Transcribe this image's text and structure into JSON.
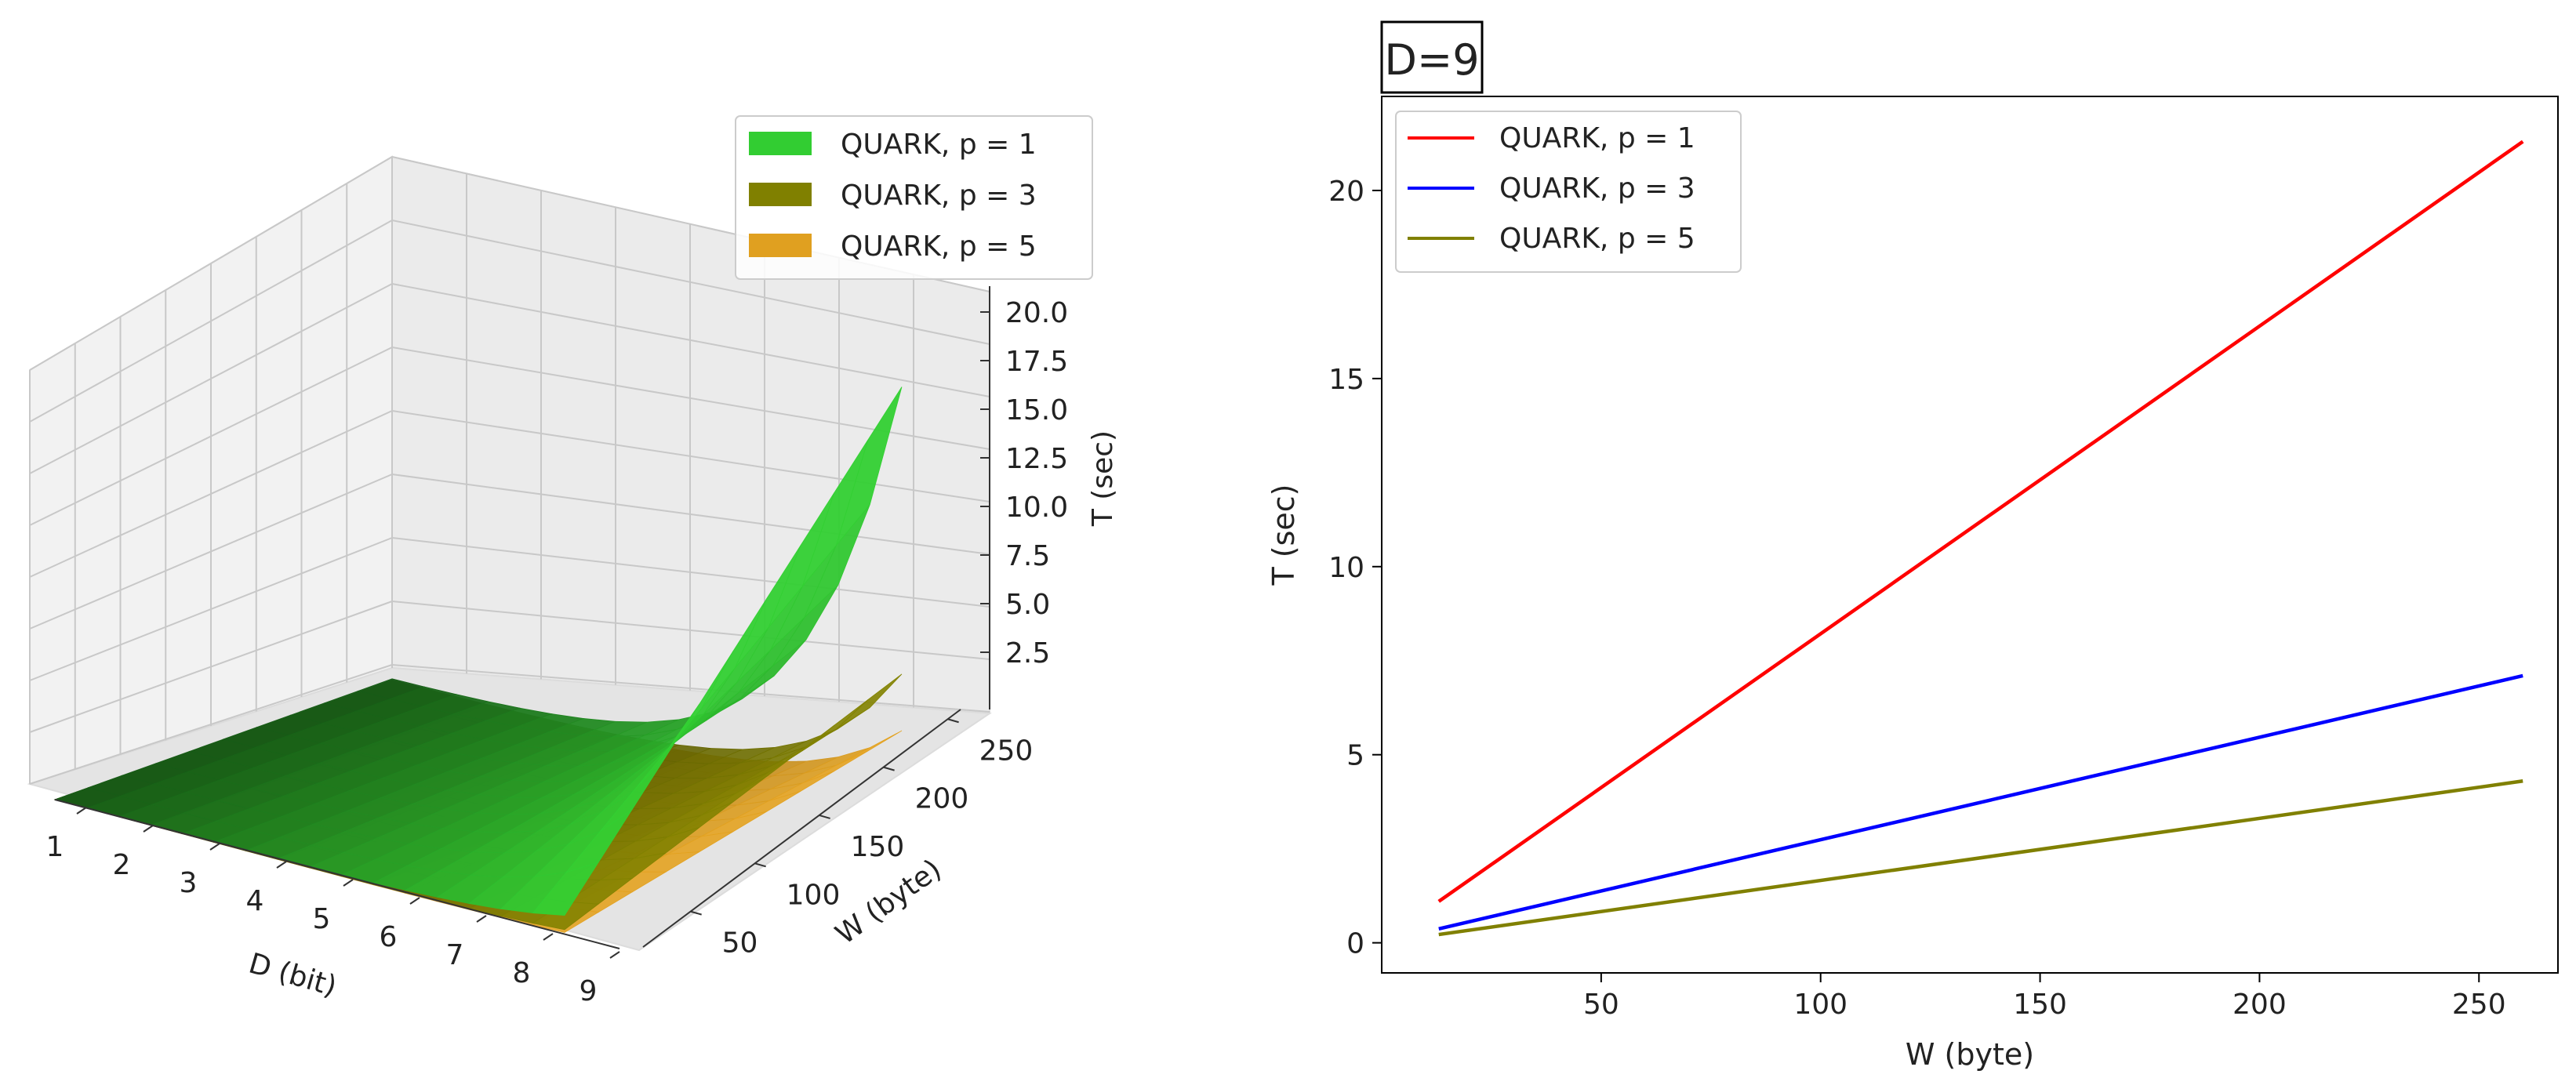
{
  "chart_data": [
    {
      "type": "surface3d",
      "xlabel": "D (bit)",
      "ylabel": "W (byte)",
      "zlabel": "T (sec)",
      "x_ticks": [
        1,
        2,
        3,
        4,
        5,
        6,
        7,
        8,
        9
      ],
      "y_ticks": [
        50,
        100,
        150,
        200,
        250
      ],
      "z_ticks": [
        "2.5",
        "5.0",
        "7.5",
        "10.0",
        "12.5",
        "15.0",
        "17.5",
        "20.0"
      ],
      "xlim": [
        1,
        9
      ],
      "ylim": [
        13,
        260
      ],
      "zlim": [
        0,
        21.5
      ],
      "legend_position": "top-right",
      "series": [
        {
          "name": "QUARK, p = 1",
          "color": "#32cd32",
          "t_at_D9_Wmax": 21.3
        },
        {
          "name": "QUARK, p = 3",
          "color": "#808000",
          "t_at_D9_Wmax": 7.1
        },
        {
          "name": "QUARK, p = 5",
          "color": "#e0a020",
          "t_at_D9_Wmax": 4.3
        }
      ]
    },
    {
      "type": "line",
      "title": "D=9",
      "xlabel": "W (byte)",
      "ylabel": "T (sec)",
      "x_ticks": [
        50,
        100,
        150,
        200,
        250
      ],
      "y_ticks": [
        0,
        5,
        10,
        15,
        20
      ],
      "xlim": [
        0,
        268
      ],
      "ylim": [
        -0.8,
        22.5
      ],
      "legend_position": "top-left",
      "series": [
        {
          "name": "QUARK, p = 1",
          "color": "#ff0000",
          "x": [
            13,
            260
          ],
          "y": [
            1.1,
            21.3
          ]
        },
        {
          "name": "QUARK, p = 3",
          "color": "#0000ff",
          "x": [
            13,
            260
          ],
          "y": [
            0.37,
            7.1
          ]
        },
        {
          "name": "QUARK, p = 5",
          "color": "#808000",
          "x": [
            13,
            260
          ],
          "y": [
            0.22,
            4.3
          ]
        }
      ]
    }
  ]
}
